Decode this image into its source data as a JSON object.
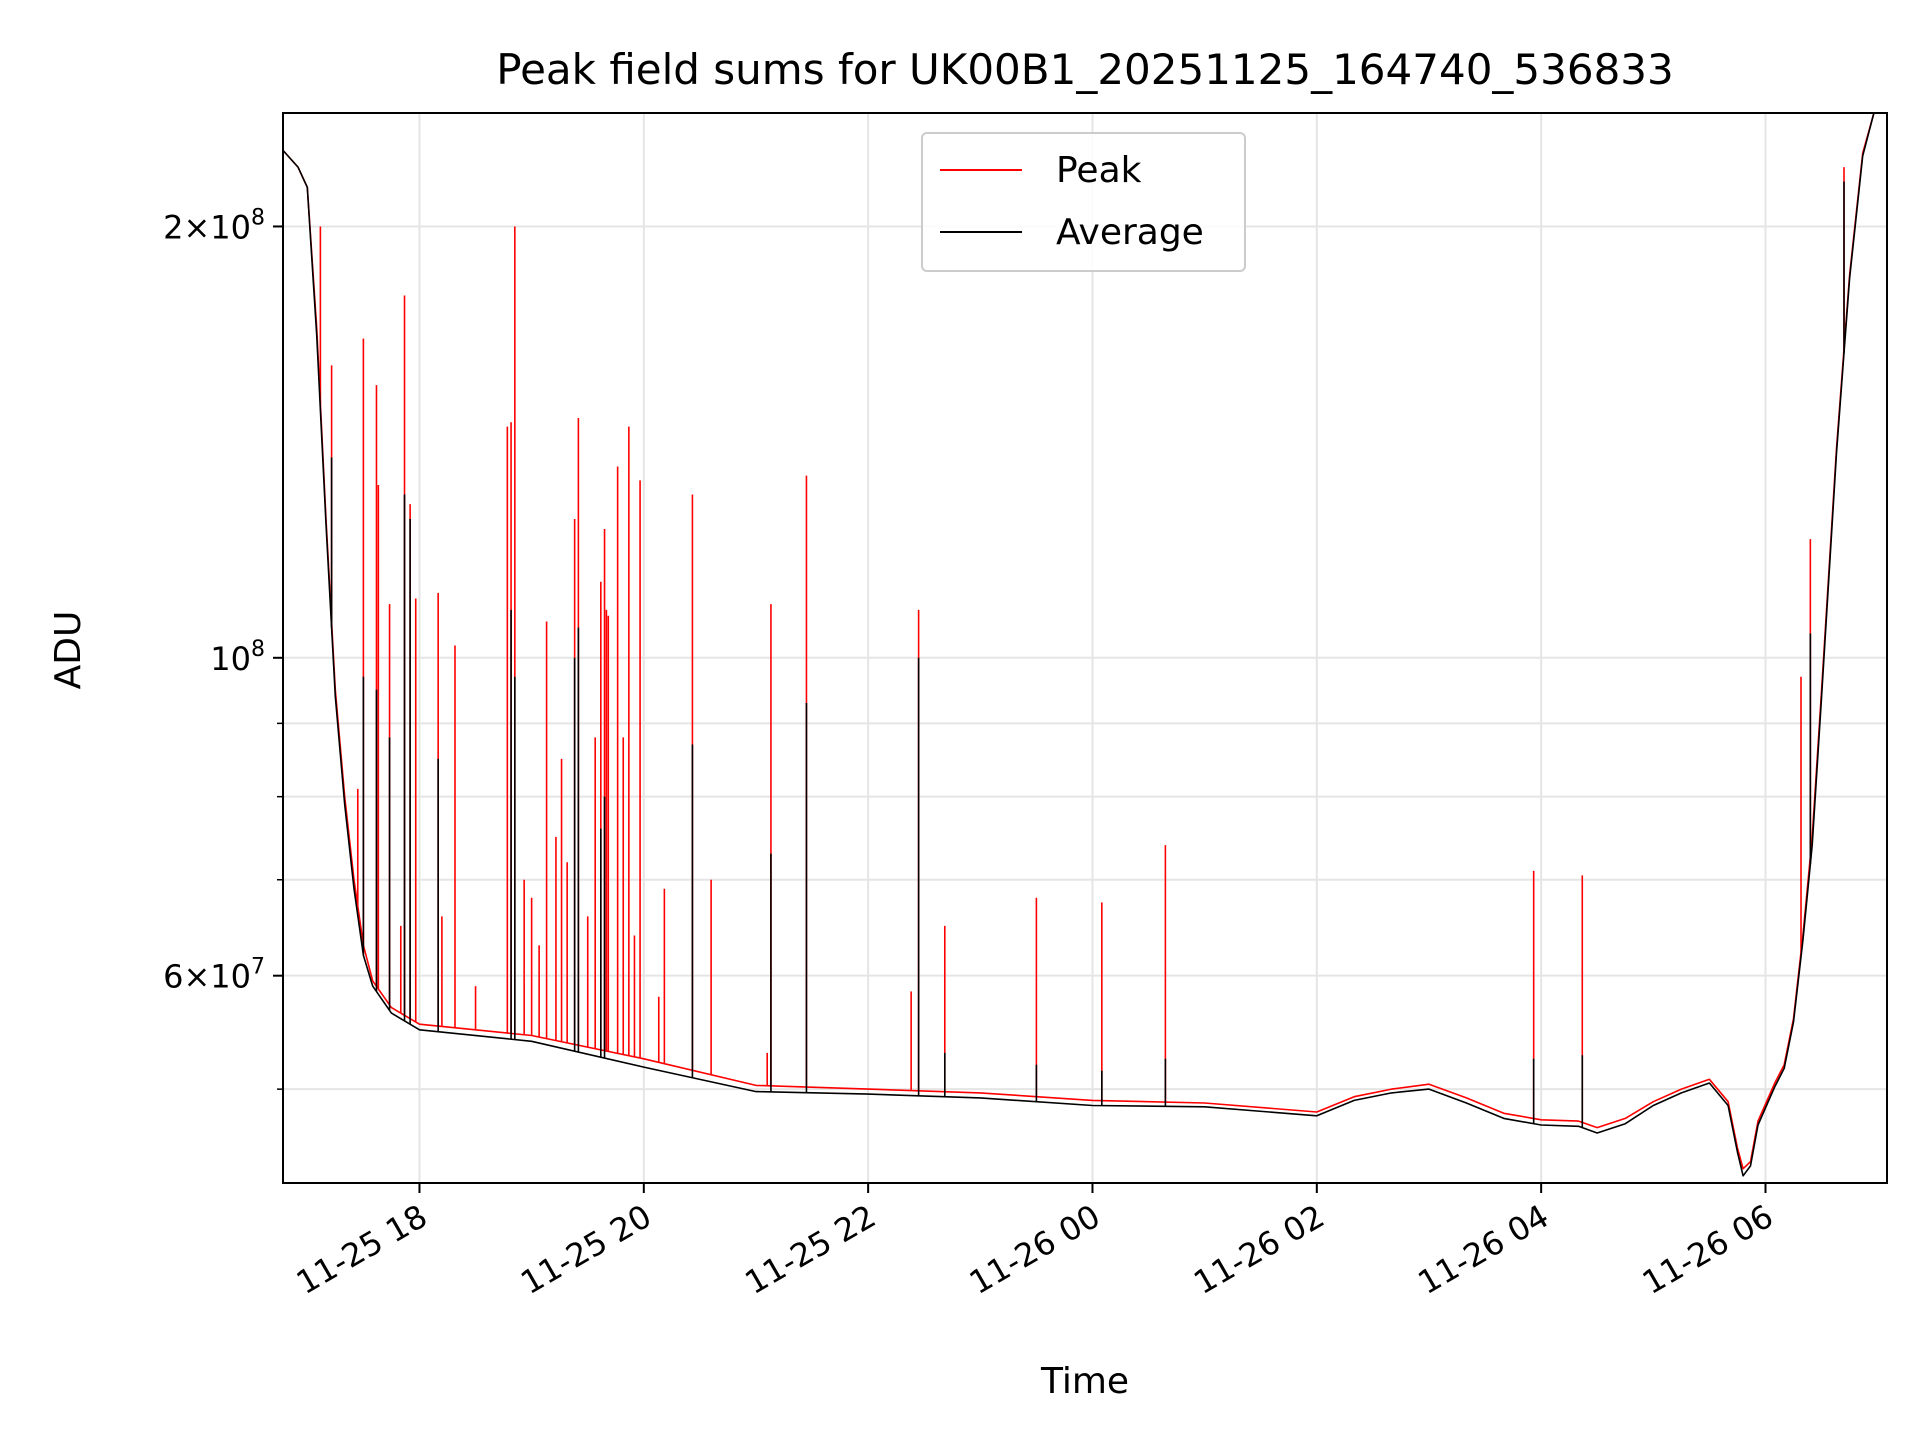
{
  "chart_data": {
    "type": "line",
    "title": "Peak field sums for UK00B1_20251125_164740_536833",
    "xlabel": "Time",
    "ylabel": "ADU",
    "yscale": "log",
    "ylim": [
      43000000,
      240000000
    ],
    "xlim": [
      "2025-11-25 16:47",
      "2025-11-26 07:05"
    ],
    "grid": true,
    "legend_position": "upper center",
    "x_ticks": [
      {
        "t": "2025-11-25 18:00",
        "label": "11-25 18"
      },
      {
        "t": "2025-11-25 20:00",
        "label": "11-25 20"
      },
      {
        "t": "2025-11-25 22:00",
        "label": "11-25 22"
      },
      {
        "t": "2025-11-26 00:00",
        "label": "11-26 00"
      },
      {
        "t": "2025-11-26 02:00",
        "label": "11-26 02"
      },
      {
        "t": "2025-11-26 04:00",
        "label": "11-26 04"
      },
      {
        "t": "2025-11-26 06:00",
        "label": "11-26 06"
      }
    ],
    "y_ticks": [
      {
        "v": 60000000,
        "mant": "6",
        "exp": "7"
      },
      {
        "v": 100000000,
        "mant": "",
        "exp": "8"
      },
      {
        "v": 200000000,
        "mant": "2",
        "exp": "8"
      }
    ],
    "y_minor_ticks": [
      50000000,
      70000000,
      80000000,
      90000000
    ],
    "series": [
      {
        "name": "Peak",
        "color": "#ff0000",
        "baseline": [
          [
            "2025-11-25 16:47",
            226000000
          ],
          [
            "2025-11-25 16:55",
            220000000
          ],
          [
            "2025-11-25 17:00",
            213000000
          ],
          [
            "2025-11-25 17:05",
            170000000
          ],
          [
            "2025-11-25 17:10",
            125000000
          ],
          [
            "2025-11-25 17:15",
            95000000
          ],
          [
            "2025-11-25 17:20",
            80000000
          ],
          [
            "2025-11-25 17:25",
            70000000
          ],
          [
            "2025-11-25 17:30",
            63000000
          ],
          [
            "2025-11-25 17:35",
            59500000
          ],
          [
            "2025-11-25 17:45",
            57000000
          ],
          [
            "2025-11-25 18:00",
            55500000
          ],
          [
            "2025-11-25 19:00",
            54500000
          ],
          [
            "2025-11-25 20:00",
            52500000
          ],
          [
            "2025-11-25 21:00",
            50300000
          ],
          [
            "2025-11-25 22:00",
            50000000
          ],
          [
            "2025-11-25 23:00",
            49700000
          ],
          [
            "2025-11-26 00:00",
            49100000
          ],
          [
            "2025-11-26 01:00",
            48900000
          ],
          [
            "2025-11-26 02:00",
            48200000
          ],
          [
            "2025-11-26 02:20",
            49400000
          ],
          [
            "2025-11-26 02:40",
            50000000
          ],
          [
            "2025-11-26 03:00",
            50400000
          ],
          [
            "2025-11-26 03:20",
            49300000
          ],
          [
            "2025-11-26 03:40",
            48100000
          ],
          [
            "2025-11-26 04:00",
            47600000
          ],
          [
            "2025-11-26 04:20",
            47500000
          ],
          [
            "2025-11-26 04:30",
            47000000
          ],
          [
            "2025-11-26 04:45",
            47700000
          ],
          [
            "2025-11-26 05:00",
            49000000
          ],
          [
            "2025-11-26 05:15",
            50000000
          ],
          [
            "2025-11-26 05:30",
            50800000
          ],
          [
            "2025-11-26 05:40",
            49000000
          ],
          [
            "2025-11-26 05:45",
            45500000
          ],
          [
            "2025-11-26 05:48",
            44000000
          ],
          [
            "2025-11-26 05:52",
            44500000
          ],
          [
            "2025-11-26 05:56",
            47500000
          ],
          [
            "2025-11-26 06:05",
            50500000
          ],
          [
            "2025-11-26 06:10",
            52000000
          ],
          [
            "2025-11-26 06:15",
            56000000
          ],
          [
            "2025-11-26 06:20",
            64000000
          ],
          [
            "2025-11-26 06:25",
            75000000
          ],
          [
            "2025-11-26 06:30",
            95000000
          ],
          [
            "2025-11-26 06:38",
            140000000
          ],
          [
            "2025-11-26 06:45",
            185000000
          ],
          [
            "2025-11-26 06:52",
            225000000
          ],
          [
            "2025-11-26 06:58",
            240000000
          ],
          [
            "2025-11-26 07:05",
            240000000
          ]
        ],
        "spikes": [
          [
            "2025-11-25 17:07",
            200000000
          ],
          [
            "2025-11-25 17:13",
            160000000
          ],
          [
            "2025-11-25 17:27",
            81000000
          ],
          [
            "2025-11-25 17:30",
            167000000
          ],
          [
            "2025-11-25 17:37",
            155000000
          ],
          [
            "2025-11-25 17:38",
            132000000
          ],
          [
            "2025-11-25 17:44",
            109000000
          ],
          [
            "2025-11-25 17:50",
            65000000
          ],
          [
            "2025-11-25 17:52",
            179000000
          ],
          [
            "2025-11-25 17:55",
            128000000
          ],
          [
            "2025-11-25 17:58",
            110000000
          ],
          [
            "2025-11-25 18:10",
            111000000
          ],
          [
            "2025-11-25 18:12",
            66000000
          ],
          [
            "2025-11-25 18:19",
            102000000
          ],
          [
            "2025-11-25 18:30",
            59000000
          ],
          [
            "2025-11-25 18:47",
            145000000
          ],
          [
            "2025-11-25 18:49",
            146000000
          ],
          [
            "2025-11-25 18:51",
            200000000
          ],
          [
            "2025-11-25 18:56",
            70000000
          ],
          [
            "2025-11-25 19:00",
            68000000
          ],
          [
            "2025-11-25 19:04",
            63000000
          ],
          [
            "2025-11-25 19:08",
            106000000
          ],
          [
            "2025-11-25 19:13",
            75000000
          ],
          [
            "2025-11-25 19:16",
            85000000
          ],
          [
            "2025-11-25 19:19",
            72000000
          ],
          [
            "2025-11-25 19:23",
            125000000
          ],
          [
            "2025-11-25 19:25",
            147000000
          ],
          [
            "2025-11-25 19:30",
            66000000
          ],
          [
            "2025-11-25 19:34",
            88000000
          ],
          [
            "2025-11-25 19:37",
            113000000
          ],
          [
            "2025-11-25 19:39",
            123000000
          ],
          [
            "2025-11-25 19:40",
            108000000
          ],
          [
            "2025-11-25 19:41",
            107000000
          ],
          [
            "2025-11-25 19:46",
            136000000
          ],
          [
            "2025-11-25 19:49",
            88000000
          ],
          [
            "2025-11-25 19:52",
            145000000
          ],
          [
            "2025-11-25 19:55",
            64000000
          ],
          [
            "2025-11-25 19:58",
            133000000
          ],
          [
            "2025-11-25 20:08",
            58000000
          ],
          [
            "2025-11-25 20:11",
            69000000
          ],
          [
            "2025-11-25 20:26",
            130000000
          ],
          [
            "2025-11-25 20:36",
            70000000
          ],
          [
            "2025-11-25 21:06",
            53000000
          ],
          [
            "2025-11-25 21:08",
            109000000
          ],
          [
            "2025-11-25 21:27",
            134000000
          ],
          [
            "2025-11-25 22:23",
            58500000
          ],
          [
            "2025-11-25 22:27",
            108000000
          ],
          [
            "2025-11-25 22:41",
            65000000
          ],
          [
            "2025-11-25 23:30",
            68000000
          ],
          [
            "2025-11-26 00:05",
            67500000
          ],
          [
            "2025-11-26 00:39",
            74000000
          ],
          [
            "2025-11-26 03:56",
            71000000
          ],
          [
            "2025-11-26 04:22",
            70500000
          ],
          [
            "2025-11-26 06:19",
            97000000
          ],
          [
            "2025-11-26 06:24",
            121000000
          ],
          [
            "2025-11-26 06:42",
            220000000
          ]
        ]
      },
      {
        "name": "Average",
        "color": "#000000",
        "baseline": [
          [
            "2025-11-25 16:47",
            226000000
          ],
          [
            "2025-11-25 16:55",
            220000000
          ],
          [
            "2025-11-25 17:00",
            213000000
          ],
          [
            "2025-11-25 17:05",
            168000000
          ],
          [
            "2025-11-25 17:10",
            124000000
          ],
          [
            "2025-11-25 17:15",
            94000000
          ],
          [
            "2025-11-25 17:20",
            79000000
          ],
          [
            "2025-11-25 17:25",
            69000000
          ],
          [
            "2025-11-25 17:30",
            62000000
          ],
          [
            "2025-11-25 17:35",
            59000000
          ],
          [
            "2025-11-25 17:45",
            56500000
          ],
          [
            "2025-11-25 18:00",
            55000000
          ],
          [
            "2025-11-25 19:00",
            54000000
          ],
          [
            "2025-11-25 20:00",
            51800000
          ],
          [
            "2025-11-25 21:00",
            49800000
          ],
          [
            "2025-11-25 22:00",
            49600000
          ],
          [
            "2025-11-25 23:00",
            49300000
          ],
          [
            "2025-11-26 00:00",
            48700000
          ],
          [
            "2025-11-26 01:00",
            48600000
          ],
          [
            "2025-11-26 02:00",
            47900000
          ],
          [
            "2025-11-26 02:20",
            49100000
          ],
          [
            "2025-11-26 02:40",
            49700000
          ],
          [
            "2025-11-26 03:00",
            50000000
          ],
          [
            "2025-11-26 03:20",
            48900000
          ],
          [
            "2025-11-26 03:40",
            47700000
          ],
          [
            "2025-11-26 04:00",
            47200000
          ],
          [
            "2025-11-26 04:20",
            47100000
          ],
          [
            "2025-11-26 04:30",
            46600000
          ],
          [
            "2025-11-26 04:45",
            47300000
          ],
          [
            "2025-11-26 05:00",
            48700000
          ],
          [
            "2025-11-26 05:15",
            49700000
          ],
          [
            "2025-11-26 05:30",
            50500000
          ],
          [
            "2025-11-26 05:40",
            48700000
          ],
          [
            "2025-11-26 05:45",
            45200000
          ],
          [
            "2025-11-26 05:48",
            43500000
          ],
          [
            "2025-11-26 05:52",
            44200000
          ],
          [
            "2025-11-26 05:56",
            47200000
          ],
          [
            "2025-11-26 06:05",
            50200000
          ],
          [
            "2025-11-26 06:10",
            51700000
          ],
          [
            "2025-11-26 06:15",
            55700000
          ],
          [
            "2025-11-26 06:20",
            63500000
          ],
          [
            "2025-11-26 06:25",
            74000000
          ],
          [
            "2025-11-26 06:30",
            94000000
          ],
          [
            "2025-11-26 06:38",
            139000000
          ],
          [
            "2025-11-26 06:45",
            184000000
          ],
          [
            "2025-11-26 06:52",
            224000000
          ],
          [
            "2025-11-26 06:58",
            240000000
          ],
          [
            "2025-11-26 07:05",
            240000000
          ]
        ],
        "spikes": [
          [
            "2025-11-25 17:13",
            138000000
          ],
          [
            "2025-11-25 17:30",
            97000000
          ],
          [
            "2025-11-25 17:37",
            95000000
          ],
          [
            "2025-11-25 17:44",
            88000000
          ],
          [
            "2025-11-25 17:52",
            130000000
          ],
          [
            "2025-11-25 17:55",
            125000000
          ],
          [
            "2025-11-25 18:10",
            85000000
          ],
          [
            "2025-11-25 18:49",
            108000000
          ],
          [
            "2025-11-25 18:51",
            97000000
          ],
          [
            "2025-11-25 19:23",
            100000000
          ],
          [
            "2025-11-25 19:25",
            105000000
          ],
          [
            "2025-11-25 19:37",
            76000000
          ],
          [
            "2025-11-25 19:39",
            80000000
          ],
          [
            "2025-11-25 20:26",
            87000000
          ],
          [
            "2025-11-25 21:08",
            73000000
          ],
          [
            "2025-11-25 21:27",
            93000000
          ],
          [
            "2025-11-25 22:27",
            100000000
          ],
          [
            "2025-11-25 22:41",
            53000000
          ],
          [
            "2025-11-25 23:30",
            52000000
          ],
          [
            "2025-11-26 00:05",
            51500000
          ],
          [
            "2025-11-26 00:39",
            52500000
          ],
          [
            "2025-11-26 03:56",
            52500000
          ],
          [
            "2025-11-26 04:22",
            52800000
          ],
          [
            "2025-11-26 06:24",
            104000000
          ],
          [
            "2025-11-26 06:42",
            215000000
          ]
        ]
      }
    ]
  }
}
